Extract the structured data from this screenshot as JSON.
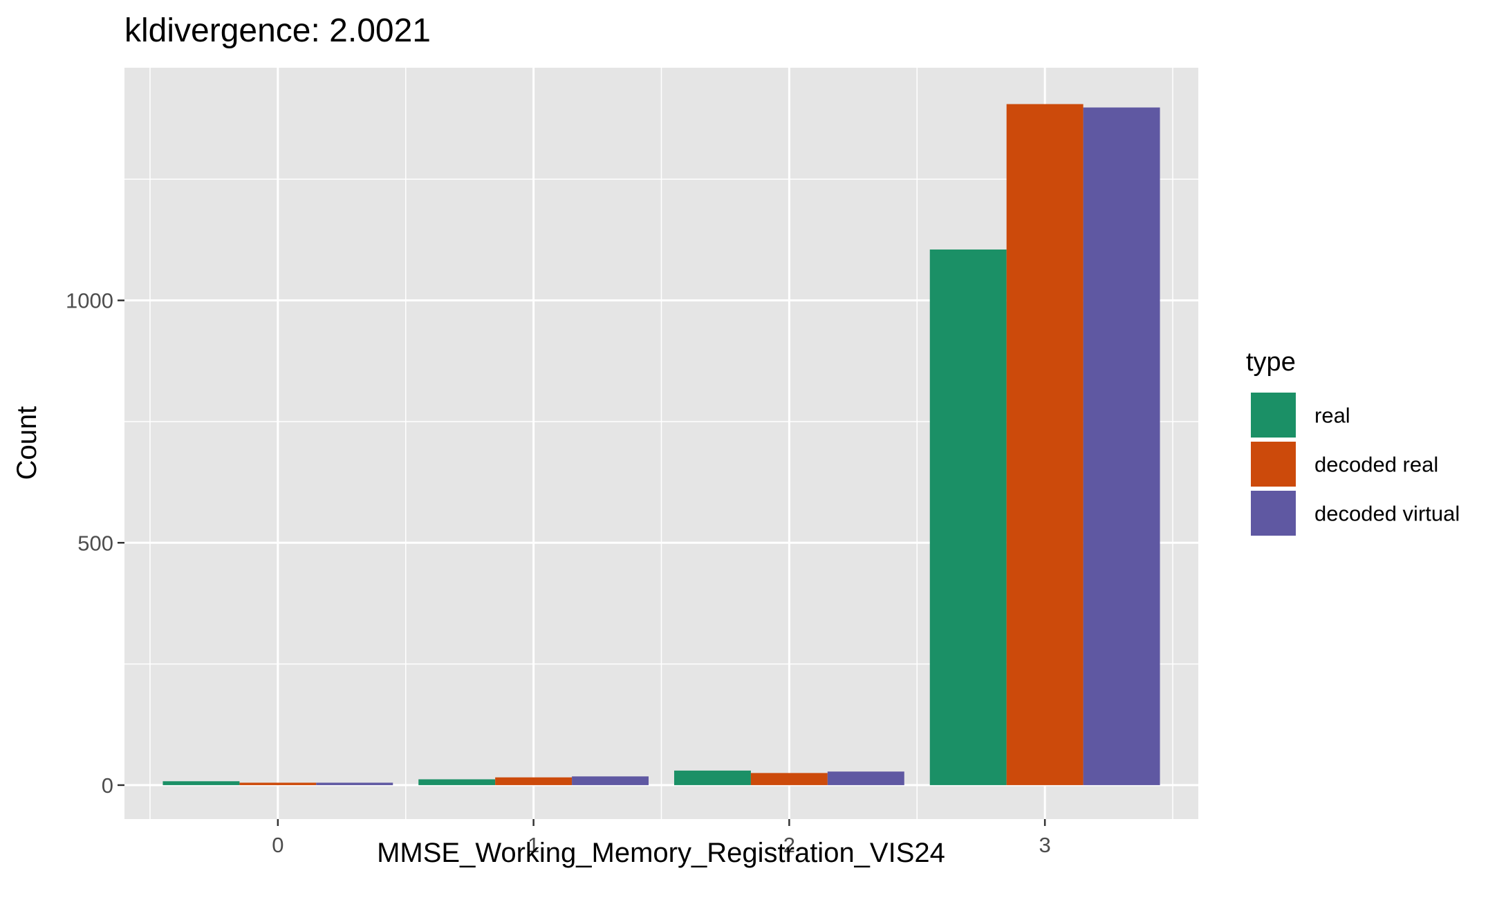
{
  "chart_data": {
    "type": "bar",
    "title": "kldivergence: 2.0021",
    "xlabel": "MMSE_Working_Memory_Registration_VIS24",
    "ylabel": "Count",
    "categories": [
      "0",
      "1",
      "2",
      "3"
    ],
    "series": [
      {
        "name": "real",
        "color": "#1b9066",
        "values": [
          8,
          12,
          30,
          1105
        ]
      },
      {
        "name": "decoded real",
        "color": "#cc4a0b",
        "values": [
          5,
          16,
          25,
          1405
        ]
      },
      {
        "name": "decoded virtual",
        "color": "#5f58a2",
        "values": [
          5,
          18,
          28,
          1398
        ]
      }
    ],
    "ylim": [
      -70,
      1480
    ],
    "yticks": [
      0,
      500,
      1000
    ],
    "ytick_labels": [
      "0",
      "500",
      "1000"
    ],
    "grid": true,
    "legend": {
      "title": "type",
      "position": "right"
    },
    "colors": {
      "panel": "#e5e5e5",
      "gridline": "#ffffff"
    }
  }
}
